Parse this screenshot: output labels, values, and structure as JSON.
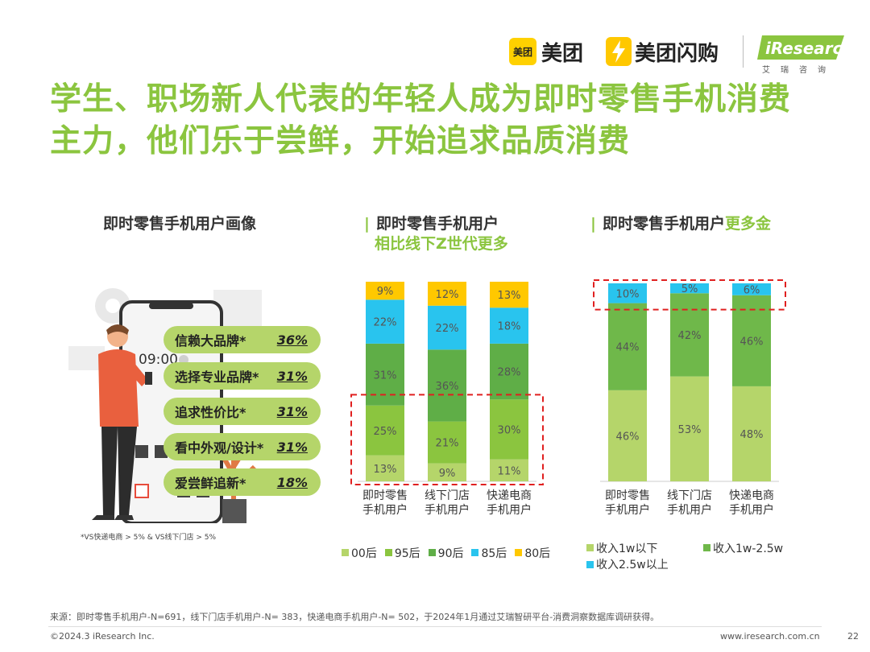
{
  "brand": {
    "meituan_badge": "美团",
    "meituan": "美团",
    "shangou": "美团闪购",
    "iresearch": "iResearch",
    "iresearch_sub": "艾瑞咨询"
  },
  "title": {
    "line1": "学生、职场新人代表的年轻人成为即时零售手机消费",
    "line2": "主力，他们乐于尝鲜，开始追求品质消费"
  },
  "left": {
    "heading": "即时零售手机用户画像",
    "phone_time": "09:00",
    "items": [
      {
        "label": "信赖大品牌*",
        "value": "36%"
      },
      {
        "label": "选择专业品牌*",
        "value": "31%"
      },
      {
        "label": "追求性价比*",
        "value": "31%"
      },
      {
        "label": "看中外观/设计*",
        "value": "31%"
      },
      {
        "label": "爱尝鲜追新*",
        "value": "18%"
      }
    ],
    "note": "*VS快递电商 > 5% & VS线下门店 > 5%"
  },
  "chart_data": [
    {
      "type": "bar",
      "stacked": true,
      "normalized": true,
      "title": "即时零售手机用户",
      "subtitle": "相比线下Z世代更多",
      "bar_mark": "|",
      "categories": [
        "即时零售\n手机用户",
        "线下门店\n手机用户",
        "快递电商\n手机用户"
      ],
      "category_lines": [
        [
          "即时零售",
          "手机用户"
        ],
        [
          "线下门店",
          "手机用户"
        ],
        [
          "快递电商",
          "手机用户"
        ]
      ],
      "series": [
        {
          "name": "00后",
          "color": "#b5d56a",
          "values": [
            13,
            9,
            11
          ]
        },
        {
          "name": "95后",
          "color": "#8bc53f",
          "values": [
            25,
            21,
            30
          ]
        },
        {
          "name": "90后",
          "color": "#5fae47",
          "values": [
            31,
            36,
            28
          ]
        },
        {
          "name": "85后",
          "color": "#29c4ee",
          "values": [
            22,
            22,
            18
          ]
        },
        {
          "name": "80后",
          "color": "#ffc800",
          "values": [
            9,
            12,
            13
          ]
        }
      ],
      "labels": [
        [
          "13%",
          "9%",
          "11%"
        ],
        [
          "25%",
          "21%",
          "30%"
        ],
        [
          "31%",
          "36%",
          "28%"
        ],
        [
          "22%",
          "22%",
          "18%"
        ],
        [
          "9%",
          "12%",
          "13%"
        ]
      ],
      "highlight": "00后+95后",
      "legend_position": "bottom"
    },
    {
      "type": "bar",
      "stacked": true,
      "normalized": true,
      "title": "即时零售手机用户",
      "title_highlight": "更多金",
      "bar_mark": "|",
      "categories": [
        "即时零售\n手机用户",
        "线下门店\n手机用户",
        "快递电商\n手机用户"
      ],
      "category_lines": [
        [
          "即时零售",
          "手机用户"
        ],
        [
          "线下门店",
          "手机用户"
        ],
        [
          "快递电商",
          "手机用户"
        ]
      ],
      "series": [
        {
          "name": "收入1w以下",
          "color": "#b5d56a",
          "values": [
            46,
            53,
            48
          ]
        },
        {
          "name": "收入1w-2.5w",
          "color": "#6fb84a",
          "values": [
            44,
            42,
            46
          ]
        },
        {
          "name": "收入2.5w以上",
          "color": "#29c4ee",
          "values": [
            10,
            5,
            6
          ]
        }
      ],
      "labels": [
        [
          "46%",
          "53%",
          "48%"
        ],
        [
          "44%",
          "42%",
          "46%"
        ],
        [
          "10%",
          "5%",
          "6%"
        ]
      ],
      "highlight": "收入2.5w以上",
      "legend_position": "bottom"
    }
  ],
  "footer": {
    "source": "来源：即时零售手机用户-N=691，线下门店手机用户-N= 383，快递电商手机用户-N= 502，于2024年1月通过艾瑞智研平台-消费洞察数据库调研获得。",
    "copyright": "©2024.3 iResearch Inc.",
    "website": "www.iresearch.com.cn",
    "page": "22"
  }
}
